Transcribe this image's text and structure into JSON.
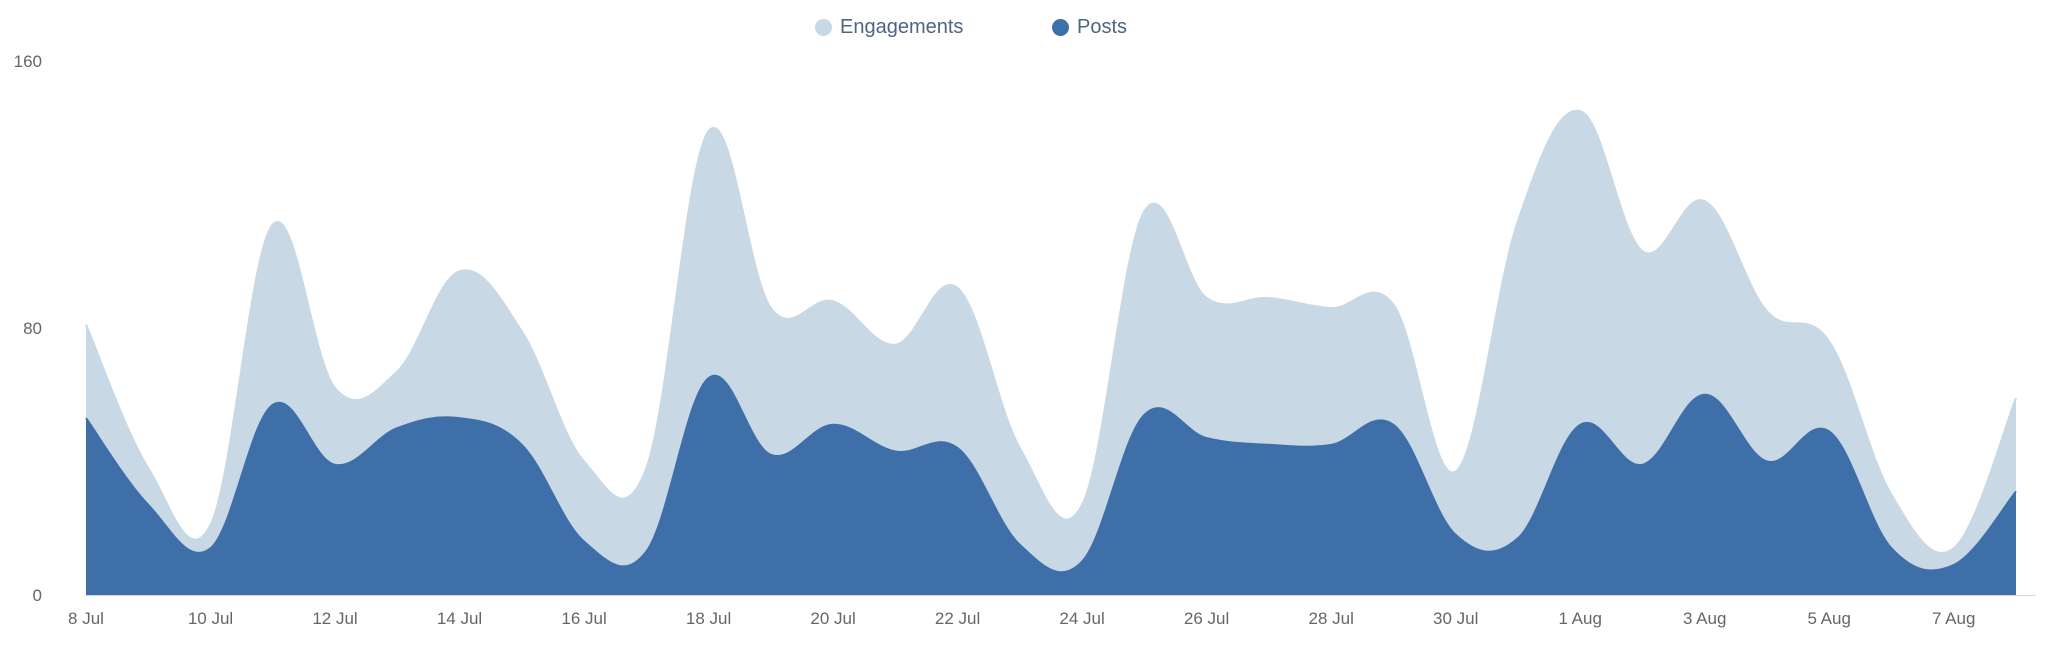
{
  "chart_data": {
    "type": "area",
    "stacked": false,
    "legend_position": "top-center",
    "grid": false,
    "x_tick_labels": [
      "8 Jul",
      "10 Jul",
      "12 Jul",
      "14 Jul",
      "16 Jul",
      "18 Jul",
      "20 Jul",
      "22 Jul",
      "24 Jul",
      "26 Jul",
      "28 Jul",
      "30 Jul",
      "1 Aug",
      "3 Aug",
      "5 Aug",
      "7 Aug"
    ],
    "y_tick_labels": [
      "0",
      "80",
      "160"
    ],
    "ylim": [
      0,
      160
    ],
    "xlim": [
      "2024-07-08",
      "2024-08-08"
    ],
    "x": [
      "2024-07-08",
      "2024-07-09",
      "2024-07-10",
      "2024-07-11",
      "2024-07-12",
      "2024-07-13",
      "2024-07-14",
      "2024-07-15",
      "2024-07-16",
      "2024-07-17",
      "2024-07-18",
      "2024-07-19",
      "2024-07-20",
      "2024-07-21",
      "2024-07-22",
      "2024-07-23",
      "2024-07-24",
      "2024-07-25",
      "2024-07-26",
      "2024-07-27",
      "2024-07-28",
      "2024-07-29",
      "2024-07-30",
      "2024-07-31",
      "2024-08-01",
      "2024-08-02",
      "2024-08-03",
      "2024-08-04",
      "2024-08-05",
      "2024-08-06",
      "2024-08-07",
      "2024-08-08"
    ],
    "series": [
      {
        "name": "Engagements",
        "color": "#c8d8e4",
        "values": [
          81,
          38,
          21,
          111,
          62,
          67,
          97,
          79,
          40,
          38,
          139,
          86,
          88,
          75,
          92,
          44,
          27,
          115,
          89,
          89,
          86,
          87,
          37,
          112,
          145,
          103,
          118,
          85,
          76,
          30,
          14,
          59
        ]
      },
      {
        "name": "Posts",
        "color": "#3f6fa9",
        "values": [
          53,
          27,
          14,
          57,
          39,
          50,
          53,
          45,
          16,
          13,
          65,
          42,
          51,
          43,
          44,
          15,
          10,
          54,
          47,
          45,
          45,
          51,
          18,
          17,
          51,
          39,
          60,
          40,
          49,
          14,
          9,
          31
        ]
      }
    ]
  }
}
